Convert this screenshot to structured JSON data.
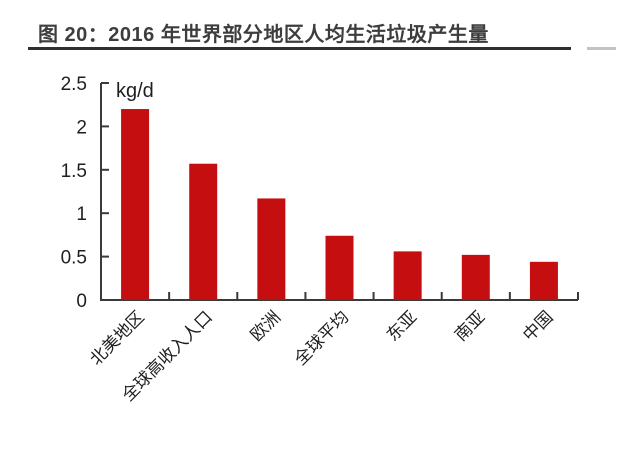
{
  "title": {
    "text": "图 20：2016 年世界部分地区人均生活垃圾产生量",
    "color": "#3d3d3d",
    "underline_color": "#2f2f2f",
    "underline_tail_color": "#c4c4c4"
  },
  "chart_data": {
    "type": "bar",
    "title": "2016 年世界部分地区人均生活垃圾产生量",
    "unit_label": "kg/d",
    "categories": [
      "北美地区",
      "全球高收入人口",
      "欧洲",
      "全球平均",
      "东亚",
      "南亚",
      "中国"
    ],
    "values": [
      2.2,
      1.57,
      1.17,
      0.74,
      0.56,
      0.52,
      0.44
    ],
    "xlabel": "",
    "ylabel": "kg/d",
    "ylim": [
      0,
      2.5
    ],
    "yticks": [
      0,
      0.5,
      1,
      1.5,
      2,
      2.5
    ],
    "grid": false,
    "legend": "none",
    "bar_color": "#c40e10",
    "axis_color": "#3a3a3a",
    "tick_label_color": "#1f1f1f"
  }
}
